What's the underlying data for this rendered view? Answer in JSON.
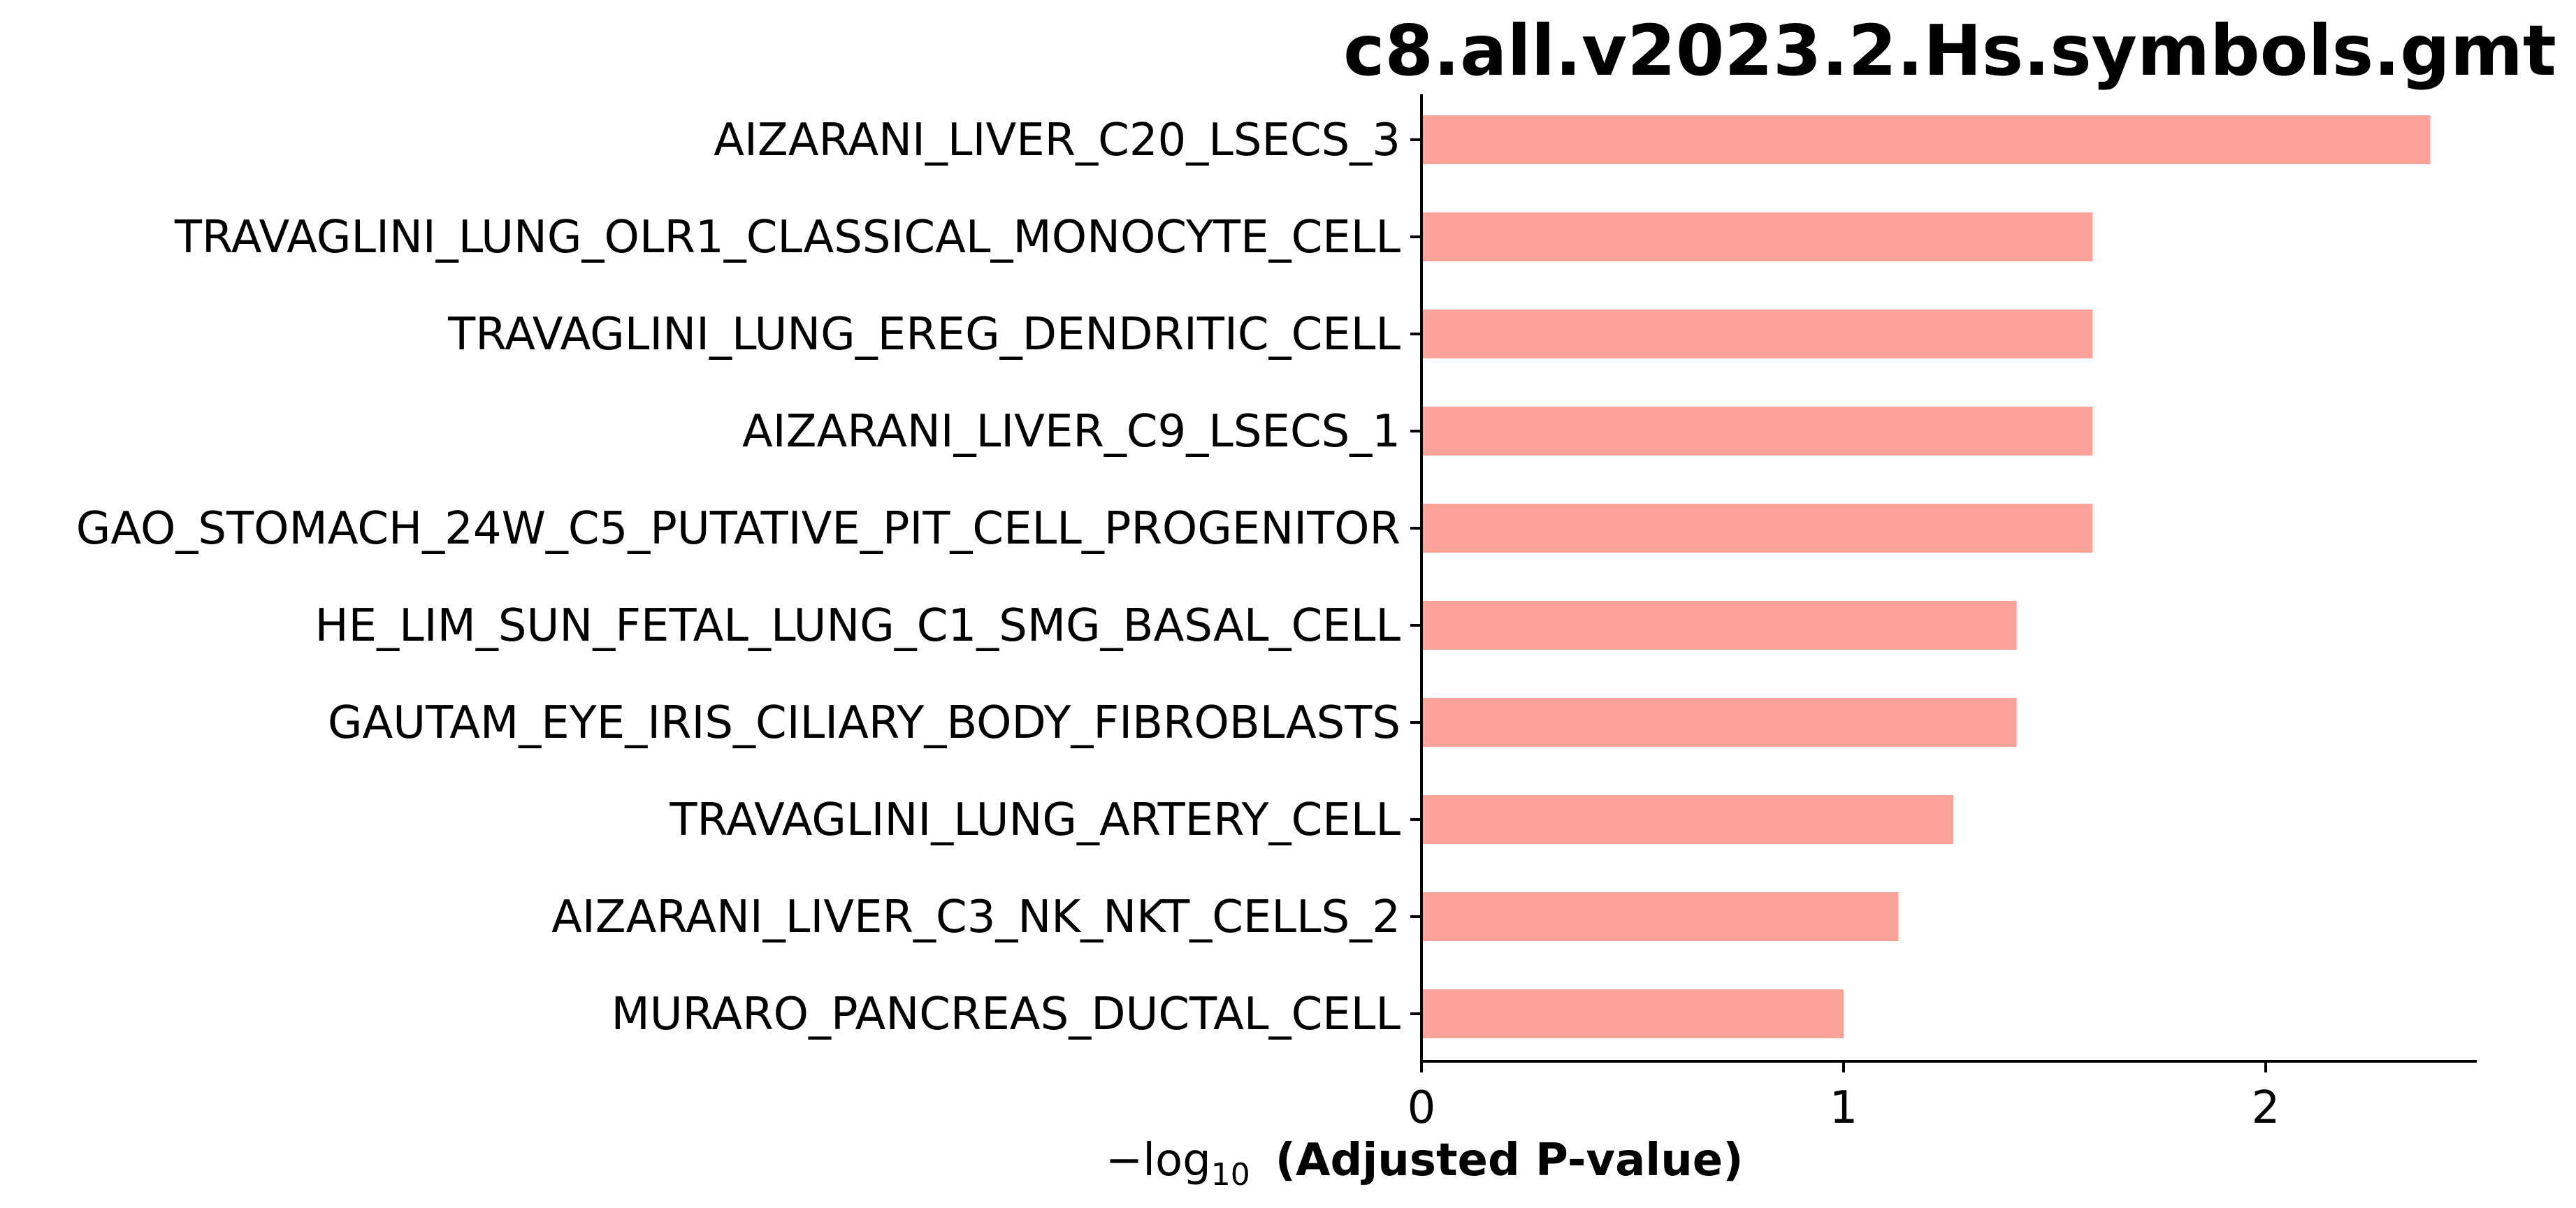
{
  "chart_data": {
    "type": "bar",
    "orientation": "horizontal",
    "title": "c8.all.v2023.2.Hs.symbols.gmt",
    "xlabel_prefix": "−log",
    "xlabel_subscript": "10",
    "xlabel": "(Adjusted P-value)",
    "ylabel": "",
    "xlim": [
      0,
      2.5
    ],
    "xticks": [
      0,
      1,
      2
    ],
    "bar_color": "#fba398",
    "grid": false,
    "categories": [
      "AIZARANI_LIVER_C20_LSECS_3",
      "TRAVAGLINI_LUNG_OLR1_CLASSICAL_MONOCYTE_CELL",
      "TRAVAGLINI_LUNG_EREG_DENDRITIC_CELL",
      "AIZARANI_LIVER_C9_LSECS_1",
      "GAO_STOMACH_24W_C5_PUTATIVE_PIT_CELL_PROGENITOR",
      "HE_LIM_SUN_FETAL_LUNG_C1_SMG_BASAL_CELL",
      "GAUTAM_EYE_IRIS_CILIARY_BODY_FIBROBLASTS",
      "TRAVAGLINI_LUNG_ARTERY_CELL",
      "AIZARANI_LIVER_C3_NK_NKT_CELLS_2",
      "MURARO_PANCREAS_DUCTAL_CELL"
    ],
    "values": [
      2.39,
      1.59,
      1.59,
      1.59,
      1.59,
      1.41,
      1.41,
      1.26,
      1.13,
      1.0
    ]
  }
}
